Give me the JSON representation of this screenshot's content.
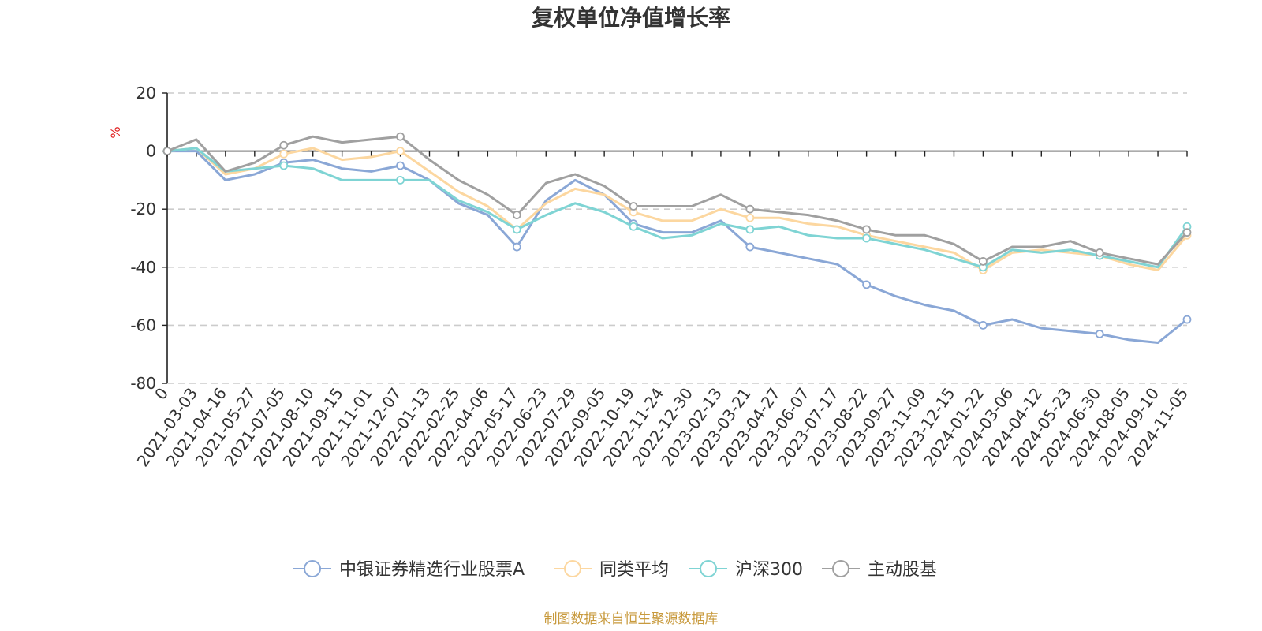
{
  "title": "复权单位净值增长率",
  "unit": "%",
  "source": "制图数据来自恒生聚源数据库",
  "chart_data": {
    "type": "line",
    "title": "复权单位净值增长率",
    "ylabel": "%",
    "xlabel": "",
    "ylim": [
      -80,
      20
    ],
    "yticks": [
      20,
      0,
      -20,
      -40,
      -60,
      -80
    ],
    "x_tick_labels": [
      "0",
      "2021-03-03",
      "2021-04-16",
      "2021-05-27",
      "2021-07-05",
      "2021-08-10",
      "2021-09-15",
      "2021-11-01",
      "2021-12-07",
      "2022-01-13",
      "2022-02-25",
      "2022-04-06",
      "2022-05-17",
      "2022-06-23",
      "2022-07-29",
      "2022-09-05",
      "2022-10-19",
      "2022-11-24",
      "2022-12-30",
      "2023-02-13",
      "2023-03-21",
      "2023-04-27",
      "2023-06-07",
      "2023-07-17",
      "2023-08-22",
      "2023-09-27",
      "2023-11-09",
      "2023-12-15",
      "2024-01-22",
      "2024-03-06",
      "2024-04-12",
      "2024-05-23",
      "2024-06-30",
      "2024-08-05",
      "2024-09-10",
      "2024-11-05"
    ],
    "grid": true,
    "legend_position": "bottom",
    "series": [
      {
        "name": "中银证券精选行业股票A",
        "color": "#8aa7d6",
        "values": [
          0,
          0,
          -10,
          -8,
          -4,
          -3,
          -6,
          -7,
          -5,
          -10,
          -18,
          -22,
          -33,
          -17,
          -10,
          -15,
          -25,
          -28,
          -28,
          -24,
          -33,
          -35,
          -37,
          -39,
          -46,
          -50,
          -53,
          -55,
          -60,
          -58,
          -61,
          -62,
          -63,
          -65,
          -66,
          -58
        ]
      },
      {
        "name": "同类平均",
        "color": "#fcd7a0",
        "values": [
          0,
          1,
          -8,
          -6,
          -1,
          1,
          -3,
          -2,
          0,
          -7,
          -14,
          -19,
          -27,
          -18,
          -13,
          -15,
          -21,
          -24,
          -24,
          -20,
          -23,
          -23,
          -25,
          -26,
          -29,
          -31,
          -33,
          -35,
          -41,
          -35,
          -34,
          -35,
          -36,
          -39,
          -41,
          -29
        ]
      },
      {
        "name": "沪深300",
        "color": "#7fd4d4",
        "values": [
          0,
          1,
          -7,
          -6,
          -5,
          -6,
          -10,
          -10,
          -10,
          -10,
          -17,
          -21,
          -27,
          -22,
          -18,
          -21,
          -26,
          -30,
          -29,
          -25,
          -27,
          -26,
          -29,
          -30,
          -30,
          -32,
          -34,
          -37,
          -40,
          -34,
          -35,
          -34,
          -36,
          -38,
          -40,
          -26
        ]
      },
      {
        "name": "主动股基",
        "color": "#a0a0a0",
        "values": [
          0,
          4,
          -7,
          -4,
          2,
          5,
          3,
          4,
          5,
          -3,
          -10,
          -15,
          -22,
          -11,
          -8,
          -12,
          -19,
          -19,
          -19,
          -15,
          -20,
          -21,
          -22,
          -24,
          -27,
          -29,
          -29,
          -32,
          -38,
          -33,
          -33,
          -31,
          -35,
          -37,
          -39,
          -28
        ]
      }
    ]
  }
}
